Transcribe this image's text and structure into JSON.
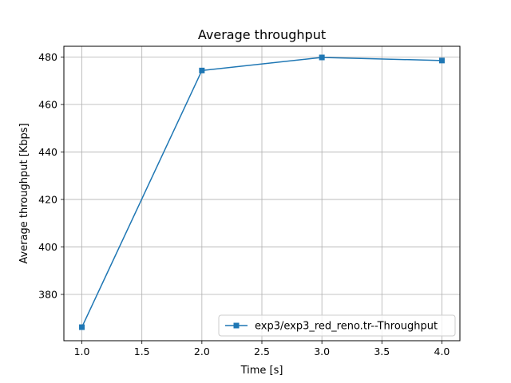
{
  "chart_data": {
    "type": "line",
    "title": "Average throughput",
    "xlabel": "Time [s]",
    "ylabel": "Average throughput [Kbps]",
    "xlim": [
      0.85,
      4.15
    ],
    "ylim": [
      360.5,
      484.5
    ],
    "xticks": [
      1.0,
      1.5,
      2.0,
      2.5,
      3.0,
      3.5,
      4.0
    ],
    "xtick_labels": [
      "1.0",
      "1.5",
      "2.0",
      "2.5",
      "3.0",
      "3.5",
      "4.0"
    ],
    "yticks": [
      380,
      400,
      420,
      440,
      460,
      480
    ],
    "ytick_labels": [
      "380",
      "400",
      "420",
      "440",
      "460",
      "480"
    ],
    "grid": true,
    "legend_position": "lower right",
    "series": [
      {
        "name": "exp3/exp3_red_reno.tr--Throughput",
        "color": "#1f77b4",
        "marker": "square",
        "x": [
          1.0,
          2.0,
          3.0,
          4.0
        ],
        "y": [
          366.2,
          474.3,
          479.8,
          478.5
        ]
      }
    ]
  }
}
